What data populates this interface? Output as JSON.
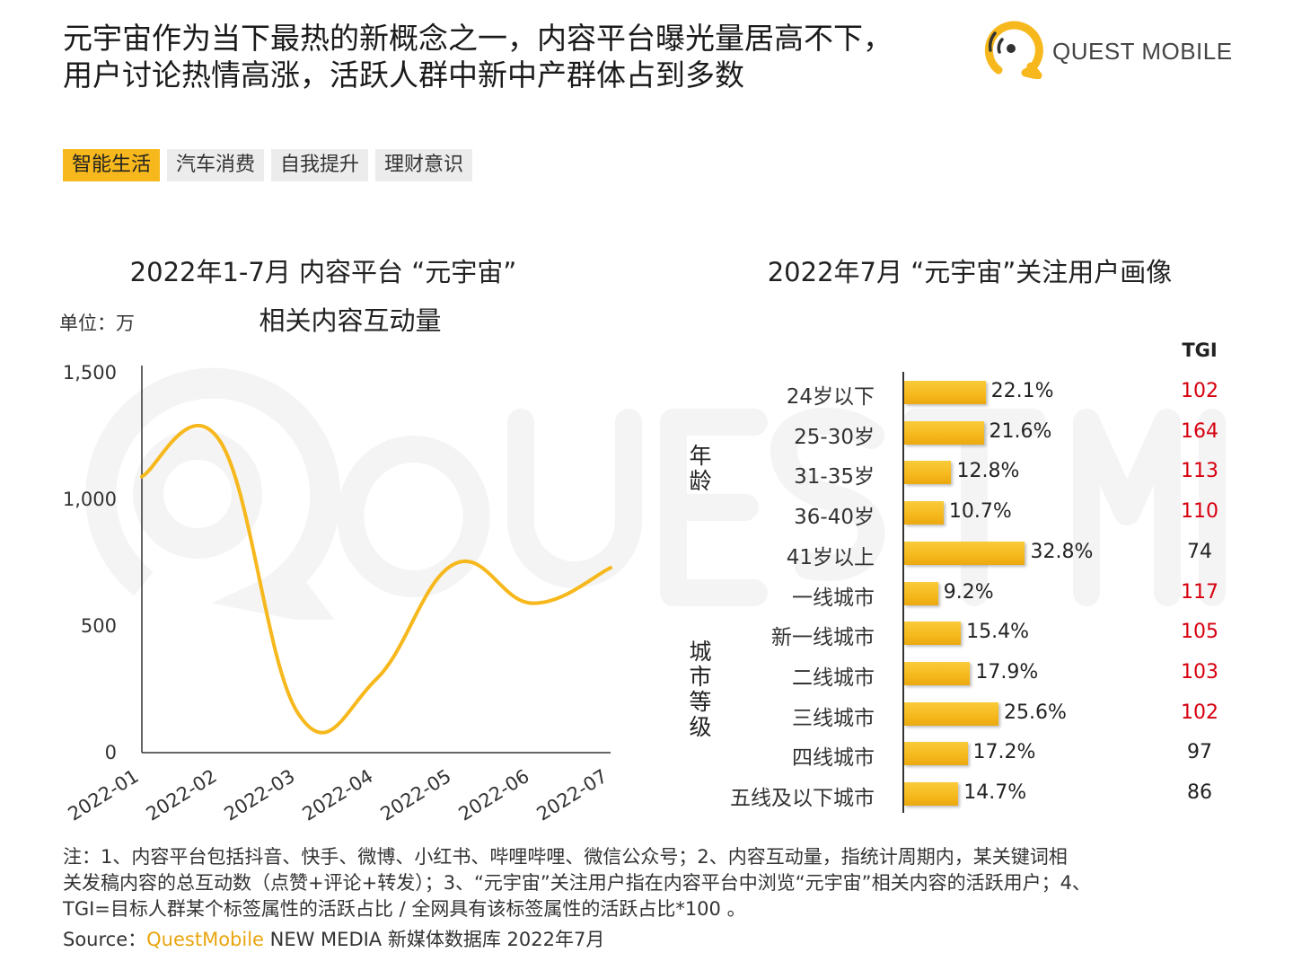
{
  "headline": {
    "line1": "元宇宙作为当下最热的新概念之一，内容平台曝光量居高不下，",
    "line2": "用户讨论热情高涨，活跃人群中新中产群体占到多数"
  },
  "logo": {
    "text": "QUEST MOBILE",
    "accent": "#f6b81c"
  },
  "tags": [
    {
      "label": "智能生活",
      "active": true
    },
    {
      "label": "汽车消费",
      "active": false
    },
    {
      "label": "自我提升",
      "active": false
    },
    {
      "label": "理财意识",
      "active": false
    }
  ],
  "chart_data": [
    {
      "type": "line",
      "title_line1": "2022年1-7月 内容平台 “元宇宙”",
      "title_line2": "相关内容互动量",
      "unit": "单位：万",
      "x": [
        "2022-01",
        "2022-02",
        "2022-03",
        "2022-04",
        "2022-05",
        "2022-06",
        "2022-07"
      ],
      "series": [
        {
          "values": [
            1090,
            1230,
            155,
            290,
            745,
            590,
            730
          ],
          "color": "#f6b81c"
        }
      ],
      "ylim": [
        0,
        1500
      ],
      "yticks": [
        0,
        500,
        1000,
        1500
      ],
      "ytick_labels": [
        "0",
        "500",
        "1,000",
        "1,500"
      ],
      "grid": false,
      "smooth": true
    },
    {
      "type": "bar",
      "orientation": "horizontal",
      "title": "2022年7月 “元宇宙”关注用户画像",
      "tgi_header": "TGI",
      "groups": [
        {
          "label": "年龄",
          "start": 0,
          "count": 5
        },
        {
          "label": "城市等级",
          "start": 5,
          "count": 6
        }
      ],
      "categories": [
        "24岁以下",
        "25-30岁",
        "31-35岁",
        "36-40岁",
        "41岁以上",
        "一线城市",
        "新一线城市",
        "二线城市",
        "三线城市",
        "四线城市",
        "五线及以下城市"
      ],
      "values": [
        22.1,
        21.6,
        12.8,
        10.7,
        32.8,
        9.2,
        15.4,
        17.9,
        25.6,
        17.2,
        14.7
      ],
      "value_labels": [
        "22.1%",
        "21.6%",
        "12.8%",
        "10.7%",
        "32.8%",
        "9.2%",
        "15.4%",
        "17.9%",
        "25.6%",
        "17.2%",
        "14.7%"
      ],
      "tgi": [
        "102",
        "164",
        "113",
        "110",
        "74",
        "117",
        "105",
        "103",
        "102",
        "97",
        "86"
      ],
      "tgi_highlight_threshold": 100,
      "colors": {
        "bar": "#f6b81c",
        "tgi_high": "#d7000f",
        "tgi_normal": "#222222"
      }
    }
  ],
  "notes": {
    "line1": "注：1、内容平台包括抖音、快手、微博、小红书、哔哩哔哩、微信公众号；2、内容互动量，指统计周期内，某关键词相",
    "line2": "关发稿内容的总互动数（点赞+评论+转发）；3、“元宇宙”关注用户指在内容平台中浏览“元宇宙”相关内容的活跃用户；4、",
    "line3": "TGI=目标人群某个标签属性的活跃占比 / 全网具有该标签属性的活跃占比*100 。"
  },
  "source": {
    "prefix": "Source：",
    "brand": "QuestMobile",
    "suffix": " NEW MEDIA 新媒体数据库 2022年7月"
  }
}
